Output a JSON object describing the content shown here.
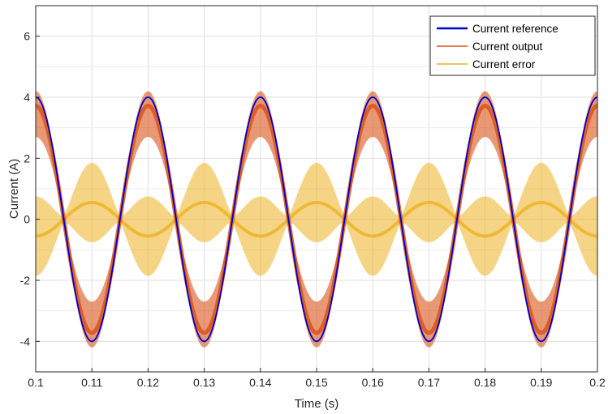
{
  "chart_data": {
    "type": "line",
    "title": "",
    "xlabel": "Time (s)",
    "ylabel": "Current (A)",
    "xlim": [
      0.1,
      0.2
    ],
    "ylim": [
      -5,
      7
    ],
    "xticks": [
      0.1,
      0.11,
      0.12,
      0.13,
      0.14,
      0.15,
      0.16,
      0.17,
      0.18,
      0.19,
      0.2
    ],
    "xtick_labels": [
      "0.1",
      "0.11",
      "0.12",
      "0.13",
      "0.14",
      "0.15",
      "0.16",
      "0.17",
      "0.18",
      "0.19",
      "0.2"
    ],
    "yticks": [
      -4,
      -2,
      0,
      2,
      4,
      6
    ],
    "ytick_labels": [
      "-4",
      "-2",
      "0",
      "2",
      "4",
      "6"
    ],
    "grid": true,
    "legend_position": "top-right",
    "frequency_hz": 50,
    "series": [
      {
        "name": "Current reference",
        "color": "#0000cc",
        "form": "sinusoid",
        "amplitude": 4.0,
        "peak_times": [
          0.1,
          0.12,
          0.14,
          0.16,
          0.18,
          0.2
        ],
        "trough_times": [
          0.11,
          0.13,
          0.15,
          0.17,
          0.19
        ]
      },
      {
        "name": "Current output",
        "color": "#d95319",
        "form": "sinusoid with high-frequency ripple",
        "amplitude": 4.0,
        "ripple_min": 0.1,
        "ripple_max": 1.3,
        "envelope_max": 4.4,
        "envelope_min": -4.4
      },
      {
        "name": "Current error",
        "color": "#edb120",
        "form": "ripple band around mean error",
        "mean_amplitude": 0.55,
        "ripple_min": 0.1,
        "ripple_max": 1.3,
        "envelope_max": 1.3,
        "envelope_min": -1.3
      }
    ]
  }
}
